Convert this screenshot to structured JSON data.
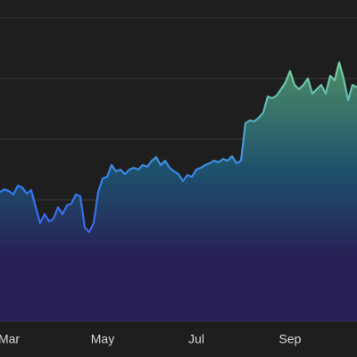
{
  "chart_data": {
    "type": "area",
    "categories": [
      null,
      null,
      "Mar",
      null,
      null,
      null,
      null,
      null,
      null,
      null,
      null,
      null,
      null,
      null,
      null,
      null,
      null,
      null,
      null,
      null,
      null,
      null,
      null,
      "May",
      null,
      null,
      null,
      null,
      null,
      null,
      null,
      null,
      null,
      null,
      null,
      null,
      null,
      null,
      null,
      null,
      null,
      null,
      null,
      null,
      "Jul",
      null,
      null,
      null,
      null,
      null,
      null,
      null,
      null,
      null,
      null,
      null,
      null,
      null,
      null,
      null,
      null,
      null,
      null,
      null,
      null,
      "Sep",
      null,
      null,
      null,
      null,
      null,
      null,
      null,
      null,
      null,
      null,
      null,
      null,
      null,
      null,
      null
    ],
    "values": [
      42.6,
      43.5,
      42.9,
      41.8,
      44.7,
      44.1,
      42.1,
      43.2,
      37.6,
      32.4,
      35.3,
      32.9,
      33.8,
      37.6,
      35.3,
      38.2,
      38.8,
      41.8,
      41.2,
      30.9,
      29.4,
      32.4,
      42.6,
      47.1,
      47.6,
      51.5,
      49.4,
      50,
      48.5,
      50,
      50.6,
      50,
      51.5,
      50.9,
      52.9,
      54.1,
      51.5,
      52.9,
      50.6,
      49.4,
      48.5,
      46.2,
      48.2,
      47.6,
      50,
      50.6,
      51.5,
      52.1,
      52.9,
      52.4,
      53.5,
      52.9,
      54.4,
      52.1,
      52.9,
      65.3,
      66.2,
      65.9,
      67.1,
      68.8,
      74.1,
      73.5,
      74.4,
      76.5,
      78.8,
      82.4,
      77.9,
      76.5,
      77.9,
      80,
      75,
      76.5,
      77.9,
      75,
      80.9,
      79.4,
      85.3,
      80,
      72.9,
      77.9,
      77.1
    ],
    "ylim": [
      0,
      100
    ],
    "yticks": [
      0,
      20,
      40,
      60,
      80,
      100
    ],
    "grid": true,
    "line_gradient": [
      "#5633d8",
      "#2f7ff0",
      "#95f27c"
    ],
    "area_gradient": [
      "#2a1f5e",
      "#1d5a7a",
      "#6fbf70"
    ]
  }
}
